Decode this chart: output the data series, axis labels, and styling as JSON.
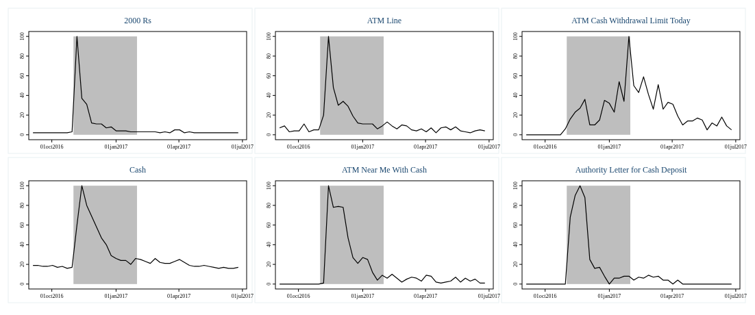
{
  "chart_data": [
    {
      "type": "line",
      "title": "2000 Rs",
      "x": [
        "2016-09-04",
        "2016-09-11",
        "2016-09-18",
        "2016-09-25",
        "2016-10-02",
        "2016-10-09",
        "2016-10-16",
        "2016-10-23",
        "2016-10-30",
        "2016-11-06",
        "2016-11-13",
        "2016-11-20",
        "2016-11-27",
        "2016-12-04",
        "2016-12-11",
        "2016-12-18",
        "2016-12-25",
        "2017-01-01",
        "2017-01-08",
        "2017-01-15",
        "2017-01-22",
        "2017-01-29",
        "2017-02-05",
        "2017-02-12",
        "2017-02-19",
        "2017-02-26",
        "2017-03-05",
        "2017-03-12",
        "2017-03-19",
        "2017-03-26",
        "2017-04-02",
        "2017-04-09",
        "2017-04-16",
        "2017-04-23",
        "2017-04-30",
        "2017-05-07",
        "2017-05-14",
        "2017-05-21",
        "2017-05-28",
        "2017-06-04",
        "2017-06-11",
        "2017-06-18",
        "2017-06-25"
      ],
      "xlim": [
        "2016-08-29",
        "2017-07-07"
      ],
      "xticks": [
        {
          "value": "2016-10-01",
          "label": "01oct2016"
        },
        {
          "value": "2017-01-01",
          "label": "01jan2017"
        },
        {
          "value": "2017-04-01",
          "label": "01apr2017"
        },
        {
          "value": "2017-07-01",
          "label": "01jul2017"
        }
      ],
      "ylim": [
        -5,
        105
      ],
      "yticks": [
        0,
        20,
        40,
        60,
        80,
        100
      ],
      "bands": [
        {
          "axis": "x",
          "from": "2016-11-01",
          "to": "2017-01-31",
          "color": "#bebebe"
        }
      ],
      "series": [
        {
          "color": "#000000",
          "values": [
            2,
            2,
            2,
            2,
            2,
            2,
            2,
            2,
            3,
            100,
            37,
            31,
            12,
            11,
            11,
            7,
            8,
            4,
            4,
            4,
            3,
            3,
            3,
            3,
            3,
            3,
            2,
            3,
            2,
            5,
            5,
            2,
            3,
            2,
            2,
            2,
            2,
            2,
            2,
            2,
            2,
            2,
            2
          ]
        }
      ]
    },
    {
      "type": "line",
      "title": "ATM Line",
      "x": [
        "2016-09-04",
        "2016-09-11",
        "2016-09-18",
        "2016-09-25",
        "2016-10-02",
        "2016-10-09",
        "2016-10-16",
        "2016-10-23",
        "2016-10-30",
        "2016-11-06",
        "2016-11-13",
        "2016-11-20",
        "2016-11-27",
        "2016-12-04",
        "2016-12-11",
        "2016-12-18",
        "2016-12-25",
        "2017-01-01",
        "2017-01-08",
        "2017-01-15",
        "2017-01-22",
        "2017-01-29",
        "2017-02-05",
        "2017-02-12",
        "2017-02-19",
        "2017-02-26",
        "2017-03-05",
        "2017-03-12",
        "2017-03-19",
        "2017-03-26",
        "2017-04-02",
        "2017-04-09",
        "2017-04-16",
        "2017-04-23",
        "2017-04-30",
        "2017-05-07",
        "2017-05-14",
        "2017-05-21",
        "2017-05-28",
        "2017-06-04",
        "2017-06-11",
        "2017-06-18",
        "2017-06-25"
      ],
      "xlim": [
        "2016-08-29",
        "2017-07-07"
      ],
      "xticks": [
        {
          "value": "2016-10-01",
          "label": "01oct2016"
        },
        {
          "value": "2017-01-01",
          "label": "01jan2017"
        },
        {
          "value": "2017-04-01",
          "label": "01apr2017"
        },
        {
          "value": "2017-07-01",
          "label": "01jul2017"
        }
      ],
      "ylim": [
        -5,
        105
      ],
      "yticks": [
        0,
        20,
        40,
        60,
        80,
        100
      ],
      "bands": [
        {
          "axis": "x",
          "from": "2016-11-01",
          "to": "2017-01-31",
          "color": "#bebebe"
        }
      ],
      "series": [
        {
          "color": "#000000",
          "values": [
            7,
            9,
            3,
            4,
            4,
            11,
            3,
            5,
            5,
            20,
            100,
            48,
            30,
            34,
            29,
            19,
            12,
            11,
            11,
            11,
            6,
            9,
            13,
            9,
            6,
            10,
            9,
            5,
            4,
            6,
            3,
            7,
            2,
            7,
            8,
            5,
            8,
            4,
            3,
            2,
            4,
            5,
            4
          ]
        }
      ]
    },
    {
      "type": "line",
      "title": "ATM Cash Withdrawal Limit Today",
      "x": [
        "2016-09-04",
        "2016-09-11",
        "2016-09-18",
        "2016-09-25",
        "2016-10-02",
        "2016-10-09",
        "2016-10-16",
        "2016-10-23",
        "2016-10-30",
        "2016-11-06",
        "2016-11-13",
        "2016-11-20",
        "2016-11-27",
        "2016-12-04",
        "2016-12-11",
        "2016-12-18",
        "2016-12-25",
        "2017-01-01",
        "2017-01-08",
        "2017-01-15",
        "2017-01-22",
        "2017-01-29",
        "2017-02-05",
        "2017-02-12",
        "2017-02-19",
        "2017-02-26",
        "2017-03-05",
        "2017-03-12",
        "2017-03-19",
        "2017-03-26",
        "2017-04-02",
        "2017-04-09",
        "2017-04-16",
        "2017-04-23",
        "2017-04-30",
        "2017-05-07",
        "2017-05-14",
        "2017-05-21",
        "2017-05-28",
        "2017-06-04",
        "2017-06-11",
        "2017-06-18",
        "2017-06-25"
      ],
      "xlim": [
        "2016-08-29",
        "2017-07-07"
      ],
      "xticks": [
        {
          "value": "2016-10-01",
          "label": "01oct2016"
        },
        {
          "value": "2017-01-01",
          "label": "01jan2017"
        },
        {
          "value": "2017-04-01",
          "label": "01apr2017"
        },
        {
          "value": "2017-07-01",
          "label": "01jul2017"
        }
      ],
      "ylim": [
        -5,
        105
      ],
      "yticks": [
        0,
        20,
        40,
        60,
        80,
        100
      ],
      "bands": [
        {
          "axis": "x",
          "from": "2016-11-01",
          "to": "2017-01-31",
          "color": "#bebebe"
        }
      ],
      "series": [
        {
          "color": "#000000",
          "values": [
            0,
            0,
            0,
            0,
            0,
            0,
            0,
            0,
            6,
            16,
            23,
            27,
            36,
            10,
            10,
            15,
            35,
            32,
            23,
            54,
            34,
            100,
            50,
            43,
            59,
            41,
            26,
            51,
            26,
            33,
            31,
            19,
            10,
            14,
            14,
            17,
            15,
            5,
            12,
            9,
            18,
            9,
            5
          ]
        }
      ]
    },
    {
      "type": "line",
      "title": "Cash",
      "x": [
        "2016-09-04",
        "2016-09-11",
        "2016-09-18",
        "2016-09-25",
        "2016-10-02",
        "2016-10-09",
        "2016-10-16",
        "2016-10-23",
        "2016-10-30",
        "2016-11-06",
        "2016-11-13",
        "2016-11-20",
        "2016-11-27",
        "2016-12-04",
        "2016-12-11",
        "2016-12-18",
        "2016-12-25",
        "2017-01-01",
        "2017-01-08",
        "2017-01-15",
        "2017-01-22",
        "2017-01-29",
        "2017-02-05",
        "2017-02-12",
        "2017-02-19",
        "2017-02-26",
        "2017-03-05",
        "2017-03-12",
        "2017-03-19",
        "2017-03-26",
        "2017-04-02",
        "2017-04-09",
        "2017-04-16",
        "2017-04-23",
        "2017-04-30",
        "2017-05-07",
        "2017-05-14",
        "2017-05-21",
        "2017-05-28",
        "2017-06-04",
        "2017-06-11",
        "2017-06-18",
        "2017-06-25"
      ],
      "xlim": [
        "2016-08-29",
        "2017-07-07"
      ],
      "xticks": [
        {
          "value": "2016-10-01",
          "label": "01oct2016"
        },
        {
          "value": "2017-01-01",
          "label": "01jan2017"
        },
        {
          "value": "2017-04-01",
          "label": "01apr2017"
        },
        {
          "value": "2017-07-01",
          "label": "01jul2017"
        }
      ],
      "ylim": [
        -5,
        105
      ],
      "yticks": [
        0,
        20,
        40,
        60,
        80,
        100
      ],
      "bands": [
        {
          "axis": "x",
          "from": "2016-11-01",
          "to": "2017-01-31",
          "color": "#bebebe"
        }
      ],
      "series": [
        {
          "color": "#000000",
          "values": [
            19,
            19,
            18,
            18,
            19,
            17,
            18,
            16,
            17,
            60,
            100,
            80,
            69,
            58,
            47,
            40,
            29,
            26,
            24,
            24,
            20,
            26,
            25,
            23,
            21,
            26,
            22,
            21,
            21,
            23,
            25,
            22,
            19,
            18,
            18,
            19,
            18,
            17,
            16,
            17,
            16,
            16,
            17
          ]
        }
      ]
    },
    {
      "type": "line",
      "title": "ATM Near Me With Cash",
      "x": [
        "2016-09-04",
        "2016-09-11",
        "2016-09-18",
        "2016-09-25",
        "2016-10-02",
        "2016-10-09",
        "2016-10-16",
        "2016-10-23",
        "2016-10-30",
        "2016-11-06",
        "2016-11-13",
        "2016-11-20",
        "2016-11-27",
        "2016-12-04",
        "2016-12-11",
        "2016-12-18",
        "2016-12-25",
        "2017-01-01",
        "2017-01-08",
        "2017-01-15",
        "2017-01-22",
        "2017-01-29",
        "2017-02-05",
        "2017-02-12",
        "2017-02-19",
        "2017-02-26",
        "2017-03-05",
        "2017-03-12",
        "2017-03-19",
        "2017-03-26",
        "2017-04-02",
        "2017-04-09",
        "2017-04-16",
        "2017-04-23",
        "2017-04-30",
        "2017-05-07",
        "2017-05-14",
        "2017-05-21",
        "2017-05-28",
        "2017-06-04",
        "2017-06-11",
        "2017-06-18",
        "2017-06-25"
      ],
      "xlim": [
        "2016-08-29",
        "2017-07-07"
      ],
      "xticks": [
        {
          "value": "2016-10-01",
          "label": "01oct2016"
        },
        {
          "value": "2017-01-01",
          "label": "01jan2017"
        },
        {
          "value": "2017-04-01",
          "label": "01apr2017"
        },
        {
          "value": "2017-07-01",
          "label": "01jul2017"
        }
      ],
      "ylim": [
        -5,
        105
      ],
      "yticks": [
        0,
        20,
        40,
        60,
        80,
        100
      ],
      "bands": [
        {
          "axis": "x",
          "from": "2016-11-01",
          "to": "2017-01-31",
          "color": "#bebebe"
        }
      ],
      "series": [
        {
          "color": "#000000",
          "values": [
            0,
            0,
            0,
            0,
            0,
            0,
            0,
            0,
            0,
            1,
            100,
            78,
            79,
            78,
            47,
            27,
            21,
            27,
            25,
            12,
            4,
            9,
            6,
            10,
            6,
            2,
            5,
            7,
            6,
            3,
            9,
            8,
            2,
            1,
            2,
            3,
            7,
            2,
            6,
            3,
            5,
            1,
            1
          ]
        }
      ]
    },
    {
      "type": "line",
      "title": "Authority Letter for Cash Deposit",
      "x": [
        "2016-09-04",
        "2016-09-11",
        "2016-09-18",
        "2016-09-25",
        "2016-10-02",
        "2016-10-09",
        "2016-10-16",
        "2016-10-23",
        "2016-10-30",
        "2016-11-06",
        "2016-11-13",
        "2016-11-20",
        "2016-11-27",
        "2016-12-04",
        "2016-12-11",
        "2016-12-18",
        "2016-12-25",
        "2017-01-01",
        "2017-01-08",
        "2017-01-15",
        "2017-01-22",
        "2017-01-29",
        "2017-02-05",
        "2017-02-12",
        "2017-02-19",
        "2017-02-26",
        "2017-03-05",
        "2017-03-12",
        "2017-03-19",
        "2017-03-26",
        "2017-04-02",
        "2017-04-09",
        "2017-04-16",
        "2017-04-23",
        "2017-04-30",
        "2017-05-07",
        "2017-05-14",
        "2017-05-21",
        "2017-05-28",
        "2017-06-04",
        "2017-06-11",
        "2017-06-18",
        "2017-06-25"
      ],
      "xlim": [
        "2016-08-29",
        "2017-07-07"
      ],
      "xticks": [
        {
          "value": "2016-10-01",
          "label": "01oct2016"
        },
        {
          "value": "2017-01-01",
          "label": "01jan2017"
        },
        {
          "value": "2017-04-01",
          "label": "01apr2017"
        },
        {
          "value": "2017-07-01",
          "label": "01jul2017"
        }
      ],
      "ylim": [
        -5,
        105
      ],
      "yticks": [
        0,
        20,
        40,
        60,
        80,
        100
      ],
      "bands": [
        {
          "axis": "x",
          "from": "2016-11-01",
          "to": "2017-01-31",
          "color": "#bebebe"
        }
      ],
      "series": [
        {
          "color": "#000000",
          "values": [
            0,
            0,
            0,
            0,
            0,
            0,
            0,
            0,
            0,
            68,
            90,
            100,
            88,
            25,
            16,
            17,
            8,
            0,
            6,
            6,
            8,
            8,
            4,
            7,
            6,
            9,
            7,
            8,
            4,
            4,
            0,
            4,
            0,
            0,
            0,
            0,
            0,
            0,
            0,
            0,
            0,
            0,
            0
          ]
        }
      ]
    }
  ]
}
